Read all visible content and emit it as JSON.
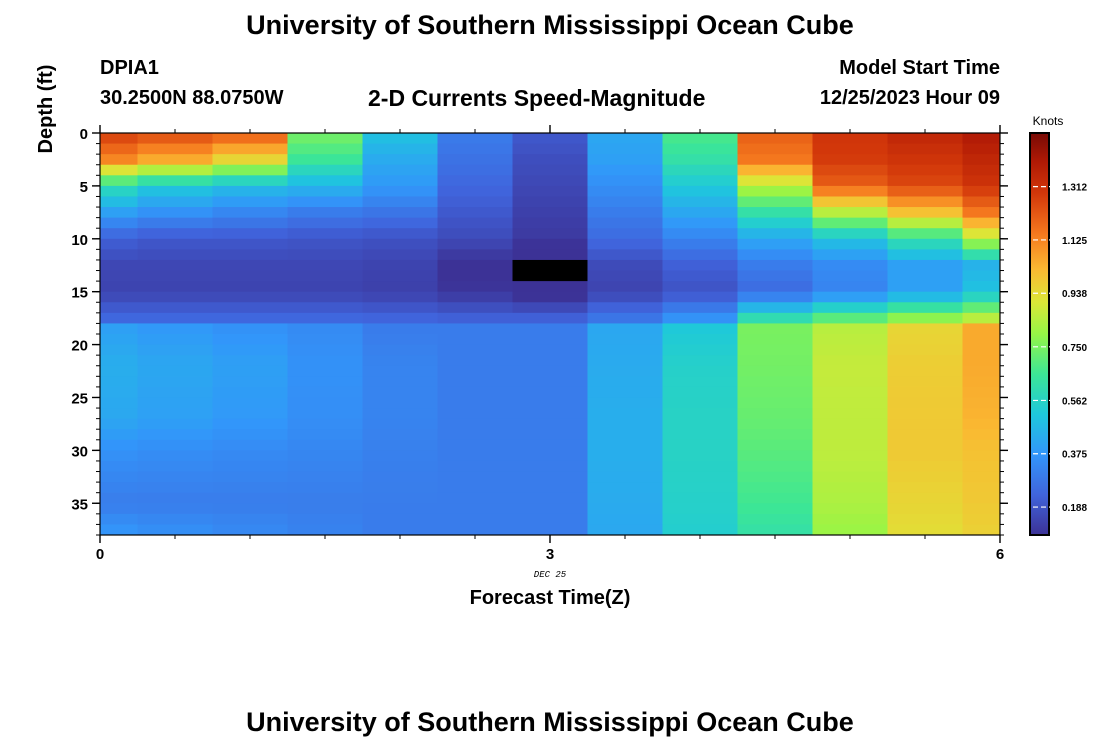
{
  "header": {
    "title": "University of Southern Mississippi Ocean Cube",
    "station_id": "DPIA1",
    "coords": "30.2500N  88.0750W",
    "chart_title": "2-D Currents Speed-Magnitude",
    "model_start_label": "Model Start Time",
    "model_start_time": "12/25/2023 Hour 09"
  },
  "footer": {
    "title": "University of Southern Mississippi Ocean Cube"
  },
  "chart_data": {
    "type": "heatmap",
    "xlabel": "Forecast Time(Z)",
    "ylabel": "Depth (ft)",
    "xlim": [
      0,
      6
    ],
    "ylim": [
      0,
      38
    ],
    "y_inverted": true,
    "xticks": [
      0,
      3,
      6
    ],
    "yticks": [
      0,
      5,
      10,
      15,
      20,
      25,
      30,
      35
    ],
    "date_label": "DEC 25",
    "colorbar": {
      "label": "Knots",
      "range": [
        0.09,
        1.5
      ],
      "ticks": [
        0.188,
        0.375,
        0.562,
        0.75,
        0.938,
        1.125,
        1.312
      ]
    },
    "x_bins": [
      0,
      0.25,
      0.75,
      1.25,
      1.75,
      2.25,
      2.75,
      3.25,
      3.75,
      4.25,
      4.75,
      5.25,
      5.75,
      6
    ],
    "depth_nodes": [
      0,
      2.5,
      5,
      7.5,
      10,
      12.5,
      15,
      17.5,
      18.5,
      22,
      27,
      30,
      35,
      38
    ],
    "values": [
      [
        1.28,
        1.25,
        1.22,
        0.75,
        0.5,
        0.3,
        0.2,
        0.42,
        0.68,
        1.2,
        1.3,
        1.35,
        1.4
      ],
      [
        1.12,
        1.05,
        0.95,
        0.65,
        0.43,
        0.27,
        0.17,
        0.4,
        0.62,
        1.15,
        1.28,
        1.3,
        1.35
      ],
      [
        0.6,
        0.52,
        0.48,
        0.46,
        0.38,
        0.24,
        0.15,
        0.35,
        0.52,
        0.85,
        1.2,
        1.25,
        1.3
      ],
      [
        0.4,
        0.36,
        0.33,
        0.3,
        0.28,
        0.2,
        0.13,
        0.3,
        0.42,
        0.62,
        0.85,
        1.0,
        1.15
      ],
      [
        0.22,
        0.2,
        0.2,
        0.19,
        0.18,
        0.16,
        0.11,
        0.25,
        0.32,
        0.42,
        0.5,
        0.62,
        0.85
      ],
      [
        0.15,
        0.15,
        0.15,
        0.15,
        0.14,
        0.08,
        0.03,
        0.16,
        0.22,
        0.3,
        0.34,
        0.4,
        0.45
      ],
      [
        0.14,
        0.14,
        0.14,
        0.14,
        0.13,
        0.1,
        0.06,
        0.14,
        0.18,
        0.25,
        0.32,
        0.4,
        0.5
      ],
      [
        0.24,
        0.24,
        0.24,
        0.24,
        0.23,
        0.22,
        0.22,
        0.28,
        0.36,
        0.6,
        0.7,
        0.78,
        0.85
      ],
      [
        0.4,
        0.38,
        0.36,
        0.34,
        0.3,
        0.3,
        0.3,
        0.42,
        0.52,
        0.75,
        0.85,
        0.95,
        1.05
      ],
      [
        0.44,
        0.42,
        0.4,
        0.36,
        0.32,
        0.3,
        0.3,
        0.43,
        0.55,
        0.74,
        0.87,
        0.97,
        1.05
      ],
      [
        0.42,
        0.4,
        0.38,
        0.35,
        0.32,
        0.3,
        0.3,
        0.44,
        0.56,
        0.72,
        0.86,
        0.98,
        1.03
      ],
      [
        0.36,
        0.35,
        0.34,
        0.33,
        0.31,
        0.3,
        0.3,
        0.44,
        0.56,
        0.7,
        0.86,
        0.98,
        1.0
      ],
      [
        0.3,
        0.3,
        0.3,
        0.3,
        0.3,
        0.3,
        0.3,
        0.43,
        0.55,
        0.66,
        0.83,
        0.95,
        0.98
      ],
      [
        0.38,
        0.36,
        0.34,
        0.32,
        0.3,
        0.3,
        0.3,
        0.42,
        0.54,
        0.62,
        0.8,
        0.93,
        0.96
      ]
    ]
  }
}
